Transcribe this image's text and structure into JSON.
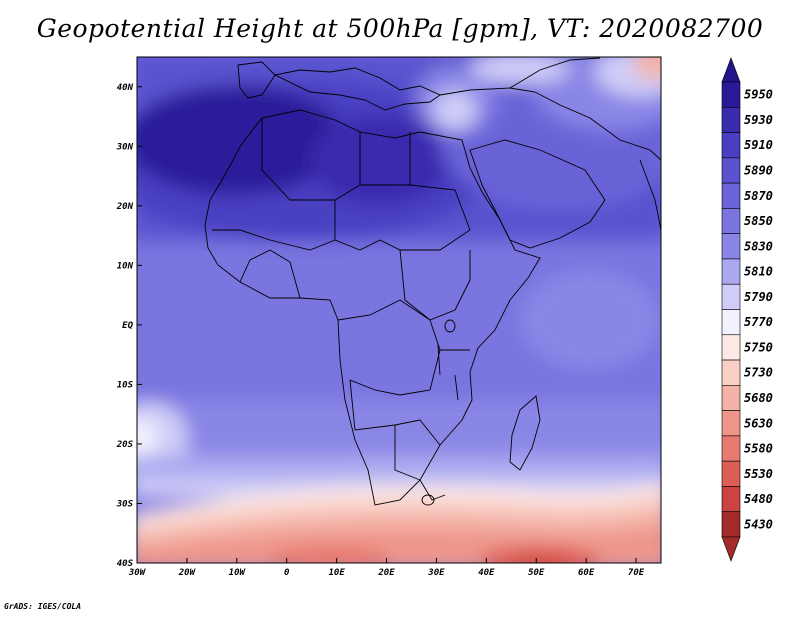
{
  "title": "Geopotential Height at 500hPa [gpm], VT: 2020082700",
  "credit": "GrADS: IGES/COLA",
  "map": {
    "lon_range": [
      -30,
      75
    ],
    "lat_range": [
      -40,
      45
    ],
    "lon_ticks": [
      {
        "value": -30,
        "label": "30W"
      },
      {
        "value": -20,
        "label": "20W"
      },
      {
        "value": -10,
        "label": "10W"
      },
      {
        "value": 0,
        "label": "0"
      },
      {
        "value": 10,
        "label": "10E"
      },
      {
        "value": 20,
        "label": "20E"
      },
      {
        "value": 30,
        "label": "30E"
      },
      {
        "value": 40,
        "label": "40E"
      },
      {
        "value": 50,
        "label": "50E"
      },
      {
        "value": 60,
        "label": "60E"
      },
      {
        "value": 70,
        "label": "70E"
      }
    ],
    "lat_ticks": [
      {
        "value": 40,
        "label": "40N"
      },
      {
        "value": 30,
        "label": "30N"
      },
      {
        "value": 20,
        "label": "20N"
      },
      {
        "value": 10,
        "label": "10N"
      },
      {
        "value": 0,
        "label": "EQ"
      },
      {
        "value": -10,
        "label": "10S"
      },
      {
        "value": -20,
        "label": "20S"
      },
      {
        "value": -30,
        "label": "30S"
      },
      {
        "value": -40,
        "label": "40S"
      }
    ]
  },
  "colorbar": {
    "levels": [
      "5950",
      "5930",
      "5910",
      "5890",
      "5870",
      "5850",
      "5830",
      "5810",
      "5790",
      "5770",
      "5750",
      "5730",
      "5680",
      "5630",
      "5580",
      "5530",
      "5480",
      "5430"
    ],
    "colors": [
      "#2a1a9a",
      "#3a2cae",
      "#4a3fc2",
      "#5a52cf",
      "#6a64d8",
      "#7a75df",
      "#8a86e6",
      "#aaa8ef",
      "#cfcdf7",
      "#f2f1fd",
      "#fde8e4",
      "#f9cfc6",
      "#f4b3a7",
      "#ee968a",
      "#e77a70",
      "#dd5e57",
      "#cc4441",
      "#a52a2a"
    ],
    "top_arrow_color": "#22148c",
    "bottom_arrow_color": "#a52a2a"
  }
}
